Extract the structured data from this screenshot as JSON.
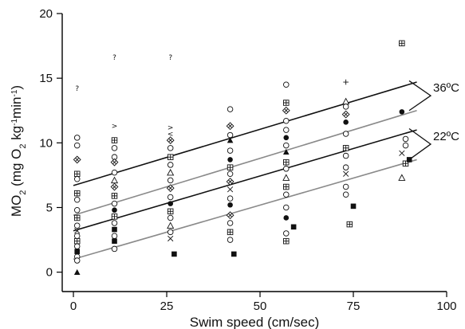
{
  "chart_data": {
    "type": "scatter",
    "title": "",
    "xlabel": "Swim speed (cm/sec)",
    "ylabel_parts": [
      "MO",
      "2",
      " (mg O",
      "2",
      " kg",
      "-1",
      "min",
      "-1",
      ")"
    ],
    "xlim": [
      -3,
      100
    ],
    "ylim": [
      -1.5,
      20
    ],
    "xticks": [
      0,
      25,
      50,
      75,
      100
    ],
    "yticks": [
      0,
      5,
      10,
      15,
      20
    ],
    "grid": false,
    "legend": "none",
    "brackets": [
      {
        "label": "36ºC",
        "y_upper": 14.8,
        "y_lower": 12.5
      },
      {
        "label": "22ºC",
        "y_upper": 11.1,
        "y_lower": 8.7
      }
    ],
    "series": [
      {
        "temperature": "36ºC",
        "line": "black",
        "fit": {
          "x0": 0,
          "y0": 6.7,
          "x1": 92,
          "y1": 14.7
        }
      },
      {
        "temperature": "36ºC",
        "line": "gray",
        "fit": {
          "x0": 0,
          "y0": 4.4,
          "x1": 92,
          "y1": 12.5
        }
      },
      {
        "temperature": "22ºC",
        "line": "black",
        "fit": {
          "x0": 0,
          "y0": 3.2,
          "x1": 92,
          "y1": 11.0
        }
      },
      {
        "temperature": "22ºC",
        "line": "gray",
        "fit": {
          "x0": 0,
          "y0": 1.0,
          "x1": 92,
          "y1": 8.7
        }
      }
    ],
    "points": [
      {
        "x": 1,
        "y": 14.2,
        "m": "?"
      },
      {
        "x": 11,
        "y": 16.6,
        "m": "?"
      },
      {
        "x": 26,
        "y": 16.6,
        "m": "?"
      },
      {
        "x": 1,
        "y": 10.4,
        "m": "o"
      },
      {
        "x": 1,
        "y": 9.8,
        "m": "o"
      },
      {
        "x": 1,
        "y": 8.7,
        "m": "dx"
      },
      {
        "x": 1,
        "y": 7.6,
        "m": "sq"
      },
      {
        "x": 1,
        "y": 7.2,
        "m": "o"
      },
      {
        "x": 1,
        "y": 6.1,
        "m": "sq"
      },
      {
        "x": 1,
        "y": 5.6,
        "m": "o"
      },
      {
        "x": 1,
        "y": 4.8,
        "m": "o"
      },
      {
        "x": 1,
        "y": 4.2,
        "m": "sq"
      },
      {
        "x": 1,
        "y": 3.6,
        "m": "o"
      },
      {
        "x": 1,
        "y": 3.2,
        "m": "x"
      },
      {
        "x": 1,
        "y": 2.8,
        "m": "o"
      },
      {
        "x": 1,
        "y": 2.4,
        "m": "sq"
      },
      {
        "x": 1,
        "y": 2.0,
        "m": "o"
      },
      {
        "x": 1,
        "y": 1.6,
        "m": "fs"
      },
      {
        "x": 1,
        "y": 1.2,
        "m": "o"
      },
      {
        "x": 1,
        "y": 0.9,
        "m": "o"
      },
      {
        "x": 1,
        "y": 0.0,
        "m": "ft"
      },
      {
        "x": 11,
        "y": 11.3,
        "m": ">"
      },
      {
        "x": 11,
        "y": 10.2,
        "m": "sq"
      },
      {
        "x": 11,
        "y": 9.6,
        "m": "o"
      },
      {
        "x": 11,
        "y": 8.9,
        "m": "o"
      },
      {
        "x": 11,
        "y": 8.5,
        "m": "dx"
      },
      {
        "x": 11,
        "y": 7.7,
        "m": "o"
      },
      {
        "x": 11,
        "y": 7.1,
        "m": "t"
      },
      {
        "x": 11,
        "y": 6.6,
        "m": "dx"
      },
      {
        "x": 11,
        "y": 5.9,
        "m": "sq"
      },
      {
        "x": 11,
        "y": 5.3,
        "m": "o"
      },
      {
        "x": 11,
        "y": 4.8,
        "m": "fc"
      },
      {
        "x": 11,
        "y": 4.3,
        "m": "sq"
      },
      {
        "x": 11,
        "y": 3.8,
        "m": "o"
      },
      {
        "x": 11,
        "y": 3.3,
        "m": "fs"
      },
      {
        "x": 11,
        "y": 2.8,
        "m": "o"
      },
      {
        "x": 11,
        "y": 2.4,
        "m": "fs"
      },
      {
        "x": 11,
        "y": 1.8,
        "m": "o"
      },
      {
        "x": 26,
        "y": 11.2,
        "m": ">"
      },
      {
        "x": 26,
        "y": 10.7,
        "m": "<"
      },
      {
        "x": 26,
        "y": 10.2,
        "m": "dx"
      },
      {
        "x": 26,
        "y": 9.6,
        "m": "o"
      },
      {
        "x": 26,
        "y": 8.9,
        "m": "sq"
      },
      {
        "x": 26,
        "y": 8.3,
        "m": "o"
      },
      {
        "x": 26,
        "y": 7.7,
        "m": "t"
      },
      {
        "x": 26,
        "y": 7.1,
        "m": "o"
      },
      {
        "x": 26,
        "y": 6.5,
        "m": "dx"
      },
      {
        "x": 26,
        "y": 5.8,
        "m": "o"
      },
      {
        "x": 26,
        "y": 5.3,
        "m": "fc"
      },
      {
        "x": 26,
        "y": 4.7,
        "m": "sq"
      },
      {
        "x": 26,
        "y": 4.2,
        "m": "o"
      },
      {
        "x": 26,
        "y": 3.6,
        "m": "t"
      },
      {
        "x": 26,
        "y": 3.1,
        "m": "o"
      },
      {
        "x": 26,
        "y": 2.6,
        "m": "x"
      },
      {
        "x": 27,
        "y": 1.4,
        "m": "fs"
      },
      {
        "x": 42,
        "y": 12.6,
        "m": "o"
      },
      {
        "x": 42,
        "y": 11.3,
        "m": "dx"
      },
      {
        "x": 42,
        "y": 10.6,
        "m": "o"
      },
      {
        "x": 42,
        "y": 10.2,
        "m": "ft"
      },
      {
        "x": 42,
        "y": 9.4,
        "m": "o"
      },
      {
        "x": 42,
        "y": 8.7,
        "m": "fc"
      },
      {
        "x": 42,
        "y": 8.1,
        "m": "sq"
      },
      {
        "x": 42,
        "y": 7.6,
        "m": "o"
      },
      {
        "x": 42,
        "y": 7.0,
        "m": "dx"
      },
      {
        "x": 42,
        "y": 6.4,
        "m": "x"
      },
      {
        "x": 42,
        "y": 5.7,
        "m": "o"
      },
      {
        "x": 42,
        "y": 5.2,
        "m": "fc"
      },
      {
        "x": 42,
        "y": 4.4,
        "m": "dx"
      },
      {
        "x": 42,
        "y": 3.8,
        "m": "o"
      },
      {
        "x": 42,
        "y": 3.1,
        "m": "sq"
      },
      {
        "x": 42,
        "y": 2.5,
        "m": "o"
      },
      {
        "x": 43,
        "y": 1.4,
        "m": "fs"
      },
      {
        "x": 57,
        "y": 14.5,
        "m": "o"
      },
      {
        "x": 57,
        "y": 13.1,
        "m": "sq"
      },
      {
        "x": 57,
        "y": 12.5,
        "m": "dx"
      },
      {
        "x": 57,
        "y": 11.7,
        "m": "o"
      },
      {
        "x": 57,
        "y": 11.0,
        "m": "o"
      },
      {
        "x": 57,
        "y": 10.4,
        "m": "fc"
      },
      {
        "x": 57,
        "y": 9.8,
        "m": "o"
      },
      {
        "x": 57,
        "y": 9.3,
        "m": "ft"
      },
      {
        "x": 57,
        "y": 8.5,
        "m": "sq"
      },
      {
        "x": 57,
        "y": 8.0,
        "m": "o"
      },
      {
        "x": 57,
        "y": 7.3,
        "m": "t"
      },
      {
        "x": 57,
        "y": 6.6,
        "m": "sq"
      },
      {
        "x": 57,
        "y": 6.0,
        "m": "o"
      },
      {
        "x": 57,
        "y": 5.0,
        "m": "o"
      },
      {
        "x": 57,
        "y": 4.2,
        "m": "fc"
      },
      {
        "x": 57,
        "y": 3.0,
        "m": "o"
      },
      {
        "x": 57,
        "y": 2.4,
        "m": "sq"
      },
      {
        "x": 59,
        "y": 3.5,
        "m": "fs"
      },
      {
        "x": 73,
        "y": 14.7,
        "m": "+"
      },
      {
        "x": 73,
        "y": 13.2,
        "m": "t"
      },
      {
        "x": 73,
        "y": 12.8,
        "m": "o"
      },
      {
        "x": 73,
        "y": 12.2,
        "m": "dx"
      },
      {
        "x": 73,
        "y": 11.6,
        "m": "fc"
      },
      {
        "x": 73,
        "y": 10.7,
        "m": "o"
      },
      {
        "x": 73,
        "y": 9.6,
        "m": "sq"
      },
      {
        "x": 73,
        "y": 9.0,
        "m": "o"
      },
      {
        "x": 73,
        "y": 8.1,
        "m": "o"
      },
      {
        "x": 73,
        "y": 7.6,
        "m": "x"
      },
      {
        "x": 73,
        "y": 6.6,
        "m": "o"
      },
      {
        "x": 73,
        "y": 6.0,
        "m": "o"
      },
      {
        "x": 74,
        "y": 3.7,
        "m": "sq"
      },
      {
        "x": 75,
        "y": 5.1,
        "m": "fs"
      },
      {
        "x": 88,
        "y": 17.7,
        "m": "sq"
      },
      {
        "x": 88,
        "y": 12.4,
        "m": "fc"
      },
      {
        "x": 89,
        "y": 10.3,
        "m": "o"
      },
      {
        "x": 89,
        "y": 9.8,
        "m": "o"
      },
      {
        "x": 88,
        "y": 9.2,
        "m": "x"
      },
      {
        "x": 89,
        "y": 8.4,
        "m": "sq"
      },
      {
        "x": 90,
        "y": 8.7,
        "m": "fs"
      },
      {
        "x": 88,
        "y": 7.3,
        "m": "t"
      }
    ]
  }
}
